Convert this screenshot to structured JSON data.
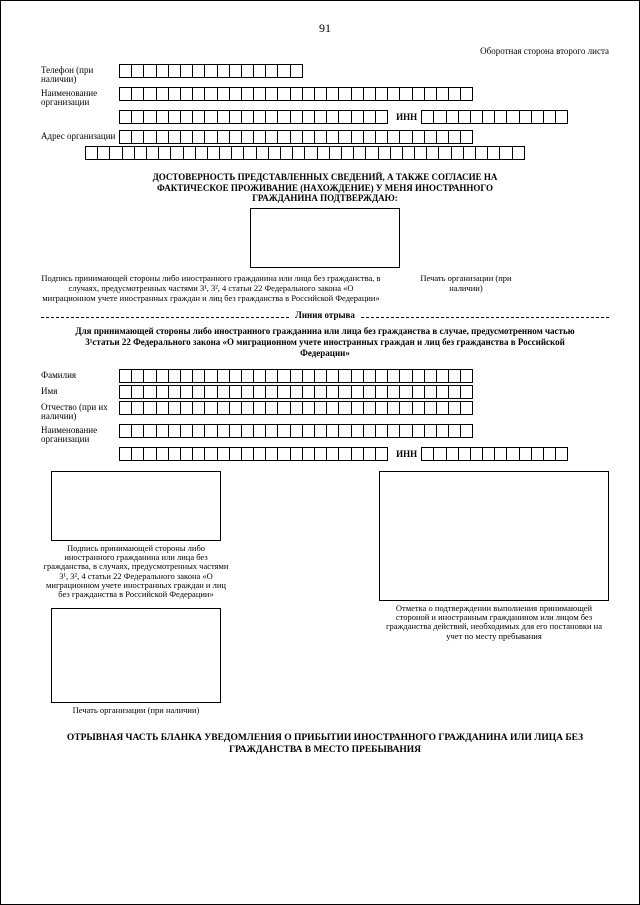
{
  "page_number": "91",
  "top_right": "Оборотная сторона второго листа",
  "labels": {
    "phone": "Телефон (при наличии)",
    "org_name": "Наименование организации",
    "inn": "ИНН",
    "org_addr": "Адрес организации",
    "surname": "Фамилия",
    "name": "Имя",
    "patronymic": "Отчество (при их наличии)",
    "org_name2": "Наименование организации"
  },
  "cell_counts": {
    "phone": 15,
    "org_name_r1": 29,
    "org_name_r2": 22,
    "inn": 12,
    "addr_r1": 29,
    "addr_r2": 36,
    "surname": 29,
    "name": 29,
    "patronymic": 29,
    "org2_r1": 29,
    "org2_r2": 22,
    "inn2": 12
  },
  "declaration": "ДОСТОВЕРНОСТЬ ПРЕДСТАВЛЕННЫХ СВЕДЕНИЙ, А ТАКЖЕ СОГЛАСИЕ НА ФАКТИЧЕСКОЕ ПРОЖИВАНИЕ (НАХОЖДЕНИЕ) У МЕНЯ ИНОСТРАННОГО ГРАЖДАНИНА ПОДТВЕРЖДАЮ:",
  "sig_note_left": "Подпись принимающей стороны либо иностранного гражданина или лица без гражданства, в случаях, предусмотренных частями 3¹, 3², 4 статьи 22 Федерального закона «О миграционном учете иностранных граждан и лиц без гражданства в Российской Федерации»",
  "sig_note_right": "Печать организации (при наличии)",
  "tear_label": "Линия отрыва",
  "tear_text": "Для принимающей стороны либо иностранного гражданина или лица без гражданства в случае, предусмотренном частью 3¹статьи 22 Федерального закона «О миграционном учете иностранных граждан и лиц без гражданства в Российской Федерации»",
  "caption_sig2": "Подпись принимающей стороны либо иностранного гражданина или лица без гражданства, в случаях, предусмотренных частями 3¹, 3², 4 статьи 22 Федерального закона «О миграционном учете иностранных граждан и лиц без гражданства в Российской Федерации»",
  "caption_mark": "Отметка о подтверждении выполнения принимающей стороной и иностранным гражданином или лицом без гражданства действий, необходимых для его постановки на учет по месту пребывания",
  "caption_stamp": "Печать организации (при наличии)",
  "footer": "ОТРЫВНАЯ ЧАСТЬ БЛАНКА УВЕДОМЛЕНИЯ О ПРИБЫТИИ ИНОСТРАННОГО ГРАЖДАНИНА ИЛИ ЛИЦА БЕЗ ГРАЖДАНСТВА В МЕСТО ПРЕБЫВАНИЯ",
  "colors": {
    "line": "#000000",
    "bg": "#ffffff"
  }
}
